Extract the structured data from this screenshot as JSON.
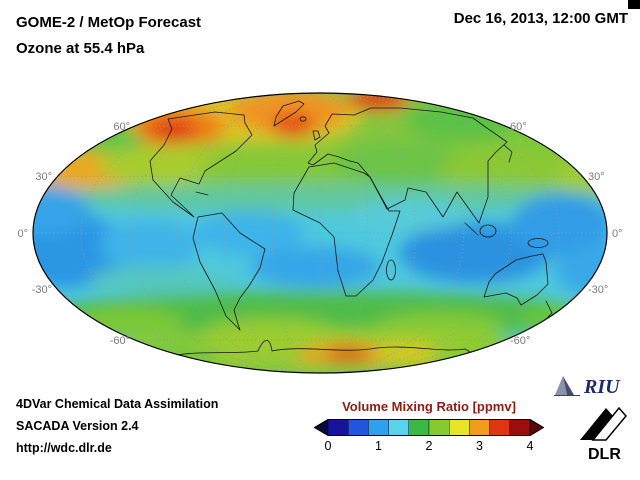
{
  "header": {
    "title_line1": "GOME-2 / MetOp Forecast",
    "title_line2": "Ozone at 55.4 hPa",
    "datetime": "Dec 16, 2013, 12:00 GMT"
  },
  "map": {
    "lat_labels": [
      "60°",
      "30°",
      "0°",
      "-30°",
      "-60°"
    ]
  },
  "colorbar": {
    "title": "Volume Mixing Ratio [ppmv]",
    "title_color": "#8b1e10",
    "ticks": [
      "0",
      "1",
      "2",
      "3",
      "4"
    ],
    "segment_colors": [
      "#14149c",
      "#2356e0",
      "#2f9ff0",
      "#57d4ec",
      "#3cb944",
      "#85cb2e",
      "#e8e426",
      "#f29c1c",
      "#e03414",
      "#9c0e0e"
    ],
    "left_arrow_color": "#0a0a3c",
    "right_arrow_color": "#5a0808"
  },
  "footer": {
    "line1": "4DVar Chemical Data Assimilation",
    "line2": "SACADA Version 2.4",
    "line3": "http://wdc.dlr.de"
  },
  "logos": {
    "riu_text": "RIU",
    "dlr_text": "DLR"
  }
}
